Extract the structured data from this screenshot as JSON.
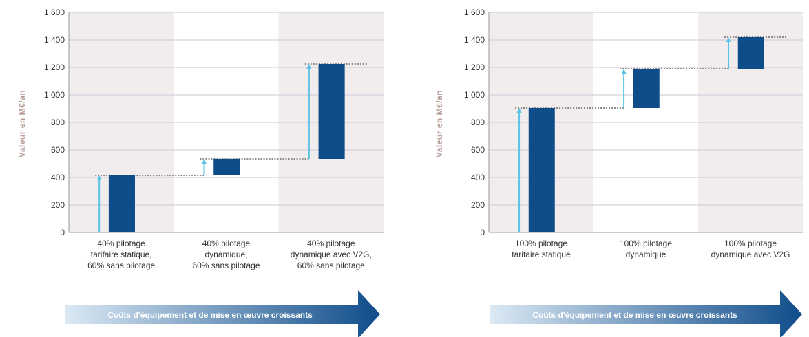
{
  "colors": {
    "bar": "#0f4c8a",
    "connector": "#5ac3e6",
    "band": "#f2eded",
    "grid": "#cfc6d6",
    "axis": "#999999",
    "ylabel": "#b79c98",
    "arrow_start": "#dbe9f4",
    "arrow_end": "#0f4c8a"
  },
  "chart_data": [
    {
      "type": "bar",
      "subtype": "waterfall",
      "ylabel": "Valeur en M€/an",
      "ylim": [
        0,
        1600
      ],
      "yticks": [
        0,
        200,
        400,
        600,
        800,
        1000,
        1200,
        1400,
        1600
      ],
      "ytick_labels": [
        "0",
        "200",
        "400",
        "600",
        "800",
        "1 000",
        "1 200",
        "1 400",
        "1 600"
      ],
      "grid": true,
      "categories": [
        [
          "40% pilotage",
          "tarifaire statique,",
          "60% sans pilotage"
        ],
        [
          "40% pilotage",
          "dynamique,",
          "60% sans pilotage"
        ],
        [
          "40% pilotage",
          "dynamique avec V2G,",
          "60% sans pilotage"
        ]
      ],
      "segments": [
        {
          "from": 0,
          "to": 415
        },
        {
          "from": 415,
          "to": 535
        },
        {
          "from": 535,
          "to": 1225
        }
      ],
      "arrow_label": "Coûts d'équipement et de mise en œuvre croissants"
    },
    {
      "type": "bar",
      "subtype": "waterfall",
      "ylabel": "Valeur en M€/an",
      "ylim": [
        0,
        1600
      ],
      "yticks": [
        0,
        200,
        400,
        600,
        800,
        1000,
        1200,
        1400,
        1600
      ],
      "ytick_labels": [
        "0",
        "200",
        "400",
        "600",
        "800",
        "1 000",
        "1 200",
        "1 400",
        "1 600"
      ],
      "grid": true,
      "categories": [
        [
          "100% pilotage",
          "tarifaire statique"
        ],
        [
          "100% pilotage",
          "dynamique"
        ],
        [
          "100% pilotage",
          "dynamique avec V2G"
        ]
      ],
      "segments": [
        {
          "from": 0,
          "to": 905
        },
        {
          "from": 905,
          "to": 1190
        },
        {
          "from": 1190,
          "to": 1420
        }
      ],
      "arrow_label": "Coûts d'équipement et de mise en œuvre croissants"
    }
  ]
}
